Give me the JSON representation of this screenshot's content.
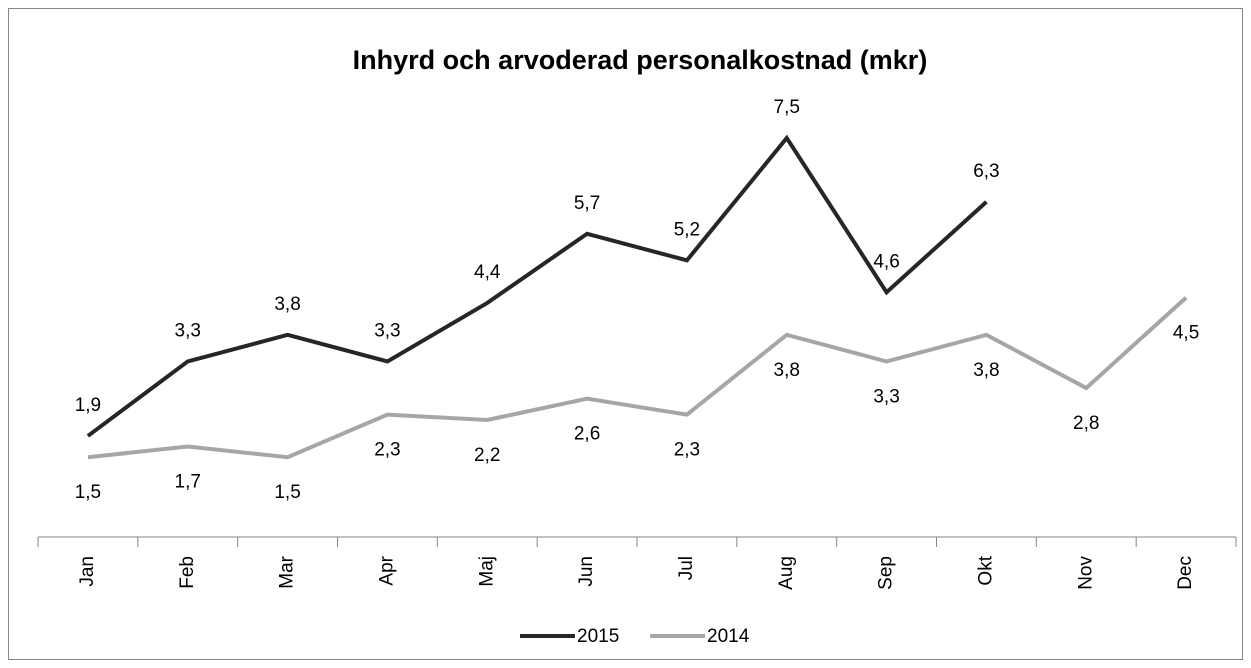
{
  "chart_data": {
    "type": "line",
    "title": "Inhyrd och arvoderad   personalkostnad (mkr)",
    "categories": [
      "Jan",
      "Feb",
      "Mar",
      "Apr",
      "Maj",
      "Jun",
      "Jul",
      "Aug",
      "Sep",
      "Okt",
      "Nov",
      "Dec"
    ],
    "series": [
      {
        "name": "2015",
        "color": "#262626",
        "values": [
          1.9,
          3.3,
          3.8,
          3.3,
          4.4,
          5.7,
          5.2,
          7.5,
          4.6,
          6.3,
          null,
          null
        ],
        "value_labels": [
          "1,9",
          "3,3",
          "3,8",
          "3,3",
          "4,4",
          "5,7",
          "5,2",
          "7,5",
          "4,6",
          "6,3",
          null,
          null
        ]
      },
      {
        "name": "2014",
        "color": "#a6a6a6",
        "values": [
          1.5,
          1.7,
          1.5,
          2.3,
          2.2,
          2.6,
          2.3,
          3.8,
          3.3,
          3.8,
          2.8,
          4.5
        ],
        "value_labels": [
          "1,5",
          "1,7",
          "1,5",
          "2,3",
          "2,2",
          "2,6",
          "2,3",
          "3,8",
          "3,3",
          "3,8",
          "2,8",
          "4,5"
        ]
      }
    ],
    "legend": "bottom"
  }
}
